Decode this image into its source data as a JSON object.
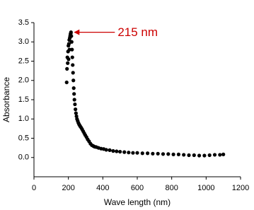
{
  "chart_data": {
    "type": "scatter",
    "x_label": "Wave length (nm)",
    "y_label": "Absorbance",
    "annotation": "215 nm",
    "color": "#000000",
    "x": [
      190,
      192,
      194,
      196,
      198,
      200,
      201,
      203,
      205,
      206,
      208,
      210,
      212,
      214,
      215,
      217,
      219,
      221,
      223,
      225,
      227,
      229,
      231,
      233,
      235,
      238,
      241,
      244,
      247,
      250,
      254,
      258,
      262,
      266,
      270,
      275,
      280,
      286,
      292,
      298,
      305,
      312,
      320,
      328,
      336,
      344,
      352,
      362,
      375,
      390,
      405,
      420,
      440,
      460,
      480,
      500,
      525,
      550,
      575,
      600,
      630,
      660,
      690,
      720,
      750,
      780,
      810,
      840,
      870,
      900,
      930,
      960,
      990,
      1020,
      1050,
      1080,
      1100
    ],
    "y": [
      1.95,
      2.3,
      2.6,
      2.45,
      2.75,
      2.9,
      2.55,
      2.95,
      3.05,
      2.8,
      3.1,
      3.15,
      3.2,
      3.22,
      3.25,
      3.15,
      3.0,
      2.8,
      2.6,
      2.4,
      2.2,
      2.0,
      1.8,
      1.65,
      1.5,
      1.38,
      1.25,
      1.15,
      1.07,
      1.0,
      0.95,
      0.9,
      0.86,
      0.83,
      0.8,
      0.77,
      0.73,
      0.68,
      0.63,
      0.58,
      0.53,
      0.47,
      0.42,
      0.36,
      0.32,
      0.3,
      0.28,
      0.27,
      0.25,
      0.23,
      0.22,
      0.2,
      0.19,
      0.17,
      0.16,
      0.15,
      0.14,
      0.13,
      0.12,
      0.12,
      0.11,
      0.11,
      0.1,
      0.1,
      0.09,
      0.09,
      0.08,
      0.08,
      0.07,
      0.06,
      0.06,
      0.05,
      0.05,
      0.06,
      0.07,
      0.07,
      0.08
    ],
    "xlim": [
      0,
      1200
    ],
    "xticks": [
      0,
      200,
      400,
      600,
      800,
      1000,
      1200
    ],
    "ylim": [
      -0.5,
      3.5
    ],
    "yticks": [
      {
        "value": 0,
        "label": "0.0"
      },
      0.5,
      {
        "value": 1,
        "label": "1.0"
      },
      1.5,
      {
        "value": 2,
        "label": "2.0"
      },
      2.5,
      {
        "value": 3,
        "label": "3.0"
      },
      3.5
    ]
  }
}
